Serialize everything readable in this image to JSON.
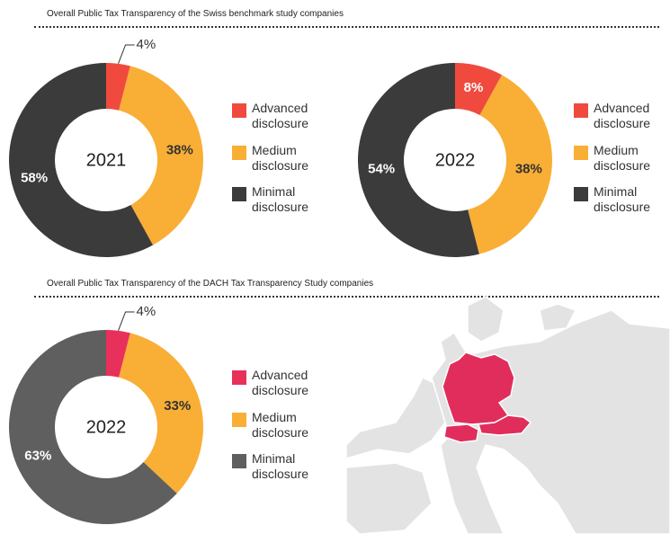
{
  "sections": [
    {
      "title": "Overall Public Tax Transparency of the Swiss benchmark study companies"
    },
    {
      "title": "Overall Public Tax Transparency of the DACH Tax Transparency Study companies"
    }
  ],
  "chart_data": [
    {
      "type": "donut",
      "center_label": "2021",
      "categories": [
        "Advanced disclosure",
        "Medium disclosure",
        "Minimal disclosure"
      ],
      "values": [
        4,
        38,
        58
      ],
      "value_labels": [
        "4%",
        "38%",
        "58%"
      ],
      "colors": [
        "#f04a3e",
        "#f9ae35",
        "#3b3b3b"
      ]
    },
    {
      "type": "donut",
      "center_label": "2022",
      "categories": [
        "Advanced disclosure",
        "Medium disclosure",
        "Minimal disclosure"
      ],
      "values": [
        8,
        38,
        54
      ],
      "value_labels": [
        "8%",
        "38%",
        "54%"
      ],
      "colors": [
        "#f04a3e",
        "#f9ae35",
        "#3b3b3b"
      ]
    },
    {
      "type": "donut",
      "center_label": "2022",
      "categories": [
        "Advanced disclosure",
        "Medium disclosure",
        "Minimal disclosure"
      ],
      "values": [
        4,
        33,
        63
      ],
      "value_labels": [
        "4%",
        "33%",
        "63%"
      ],
      "colors": [
        "#e8315a",
        "#f9ae35",
        "#5f5f5f"
      ]
    }
  ]
}
